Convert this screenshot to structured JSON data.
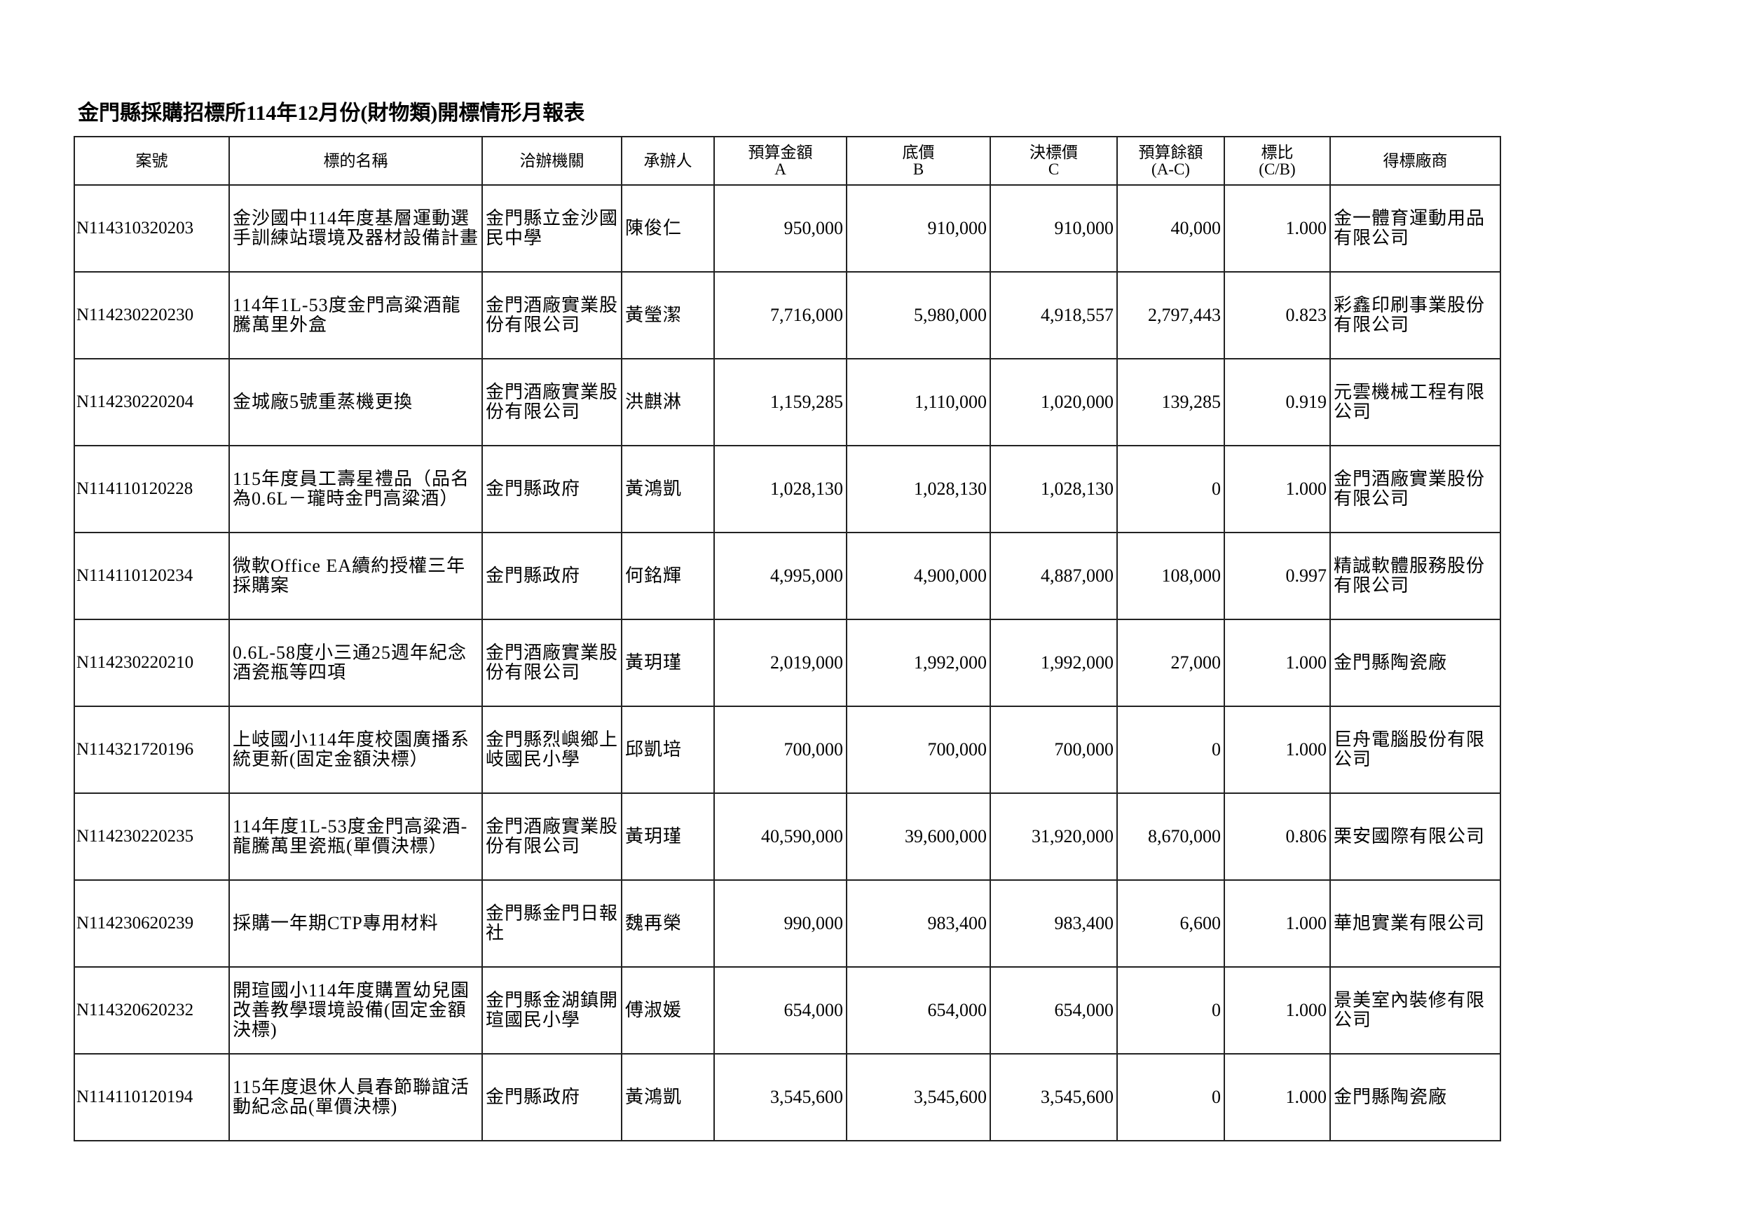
{
  "title": "金門縣採購招標所114年12月份(財物類)開標情形月報表",
  "headers": [
    {
      "main": "案號",
      "sub": ""
    },
    {
      "main": "標的名稱",
      "sub": ""
    },
    {
      "main": "洽辦機關",
      "sub": ""
    },
    {
      "main": "承辦人",
      "sub": ""
    },
    {
      "main": "預算金額",
      "sub": "A"
    },
    {
      "main": "底價",
      "sub": "B"
    },
    {
      "main": "決標價",
      "sub": "C"
    },
    {
      "main": "預算餘額",
      "sub": "(A-C)"
    },
    {
      "main": "標比",
      "sub": "(C/B)"
    },
    {
      "main": "得標廠商",
      "sub": ""
    }
  ],
  "rows": [
    {
      "case_no": "N114310320203",
      "name": "金沙國中114年度基層運動選手訓練站環境及器材設備計畫",
      "agency": "金門縣立金沙國民中學",
      "handler": "陳俊仁",
      "budget": "950,000",
      "base_price": "910,000",
      "award_price": "910,000",
      "remaining": "40,000",
      "ratio": "1.000",
      "vendor": "金一體育運動用品有限公司"
    },
    {
      "case_no": "N114230220230",
      "name": "114年1L-53度金門高粱酒龍騰萬里外盒",
      "agency": "金門酒廠實業股份有限公司",
      "handler": "黃瑩潔",
      "budget": "7,716,000",
      "base_price": "5,980,000",
      "award_price": "4,918,557",
      "remaining": "2,797,443",
      "ratio": "0.823",
      "vendor": "彩鑫印刷事業股份有限公司"
    },
    {
      "case_no": "N114230220204",
      "name": "金城廠5號重蒸機更換",
      "agency": "金門酒廠實業股份有限公司",
      "handler": "洪麒淋",
      "budget": "1,159,285",
      "base_price": "1,110,000",
      "award_price": "1,020,000",
      "remaining": "139,285",
      "ratio": "0.919",
      "vendor": "元雲機械工程有限公司"
    },
    {
      "case_no": "N114110120228",
      "name": "115年度員工壽星禮品（品名為0.6L－瓏時金門高粱酒）",
      "agency": "金門縣政府",
      "handler": "黃鴻凱",
      "budget": "1,028,130",
      "base_price": "1,028,130",
      "award_price": "1,028,130",
      "remaining": "0",
      "ratio": "1.000",
      "vendor": "金門酒廠實業股份有限公司"
    },
    {
      "case_no": "N114110120234",
      "name": "微軟Office EA續約授權三年採購案",
      "agency": "金門縣政府",
      "handler": "何銘輝",
      "budget": "4,995,000",
      "base_price": "4,900,000",
      "award_price": "4,887,000",
      "remaining": "108,000",
      "ratio": "0.997",
      "vendor": "精誠軟體服務股份有限公司"
    },
    {
      "case_no": "N114230220210",
      "name": "0.6L-58度小三通25週年紀念酒瓷瓶等四項",
      "agency": "金門酒廠實業股份有限公司",
      "handler": "黃玥瑾",
      "budget": "2,019,000",
      "base_price": "1,992,000",
      "award_price": "1,992,000",
      "remaining": "27,000",
      "ratio": "1.000",
      "vendor": "金門縣陶瓷廠"
    },
    {
      "case_no": "N114321720196",
      "name": "上岐國小114年度校園廣播系統更新(固定金額決標）",
      "agency": "金門縣烈嶼鄉上岐國民小學",
      "handler": "邱凱培",
      "budget": "700,000",
      "base_price": "700,000",
      "award_price": "700,000",
      "remaining": "0",
      "ratio": "1.000",
      "vendor": "巨舟電腦股份有限公司"
    },
    {
      "case_no": "N114230220235",
      "name": "114年度1L-53度金門高粱酒-龍騰萬里瓷瓶(單價決標）",
      "agency": "金門酒廠實業股份有限公司",
      "handler": "黃玥瑾",
      "budget": "40,590,000",
      "base_price": "39,600,000",
      "award_price": "31,920,000",
      "remaining": "8,670,000",
      "ratio": "0.806",
      "vendor": "栗安國際有限公司"
    },
    {
      "case_no": "N114230620239",
      "name": "採購一年期CTP專用材料",
      "agency": "金門縣金門日報社",
      "handler": "魏再榮",
      "budget": "990,000",
      "base_price": "983,400",
      "award_price": "983,400",
      "remaining": "6,600",
      "ratio": "1.000",
      "vendor": "華旭實業有限公司"
    },
    {
      "case_no": "N114320620232",
      "name": "開瑄國小114年度購置幼兒園改善教學環境設備(固定金額決標)",
      "agency": "金門縣金湖鎮開瑄國民小學",
      "handler": "傅淑媛",
      "budget": "654,000",
      "base_price": "654,000",
      "award_price": "654,000",
      "remaining": "0",
      "ratio": "1.000",
      "vendor": "景美室內裝修有限公司"
    },
    {
      "case_no": "N114110120194",
      "name": "115年度退休人員春節聯誼活動紀念品(單價決標)",
      "agency": "金門縣政府",
      "handler": "黃鴻凱",
      "budget": "3,545,600",
      "base_price": "3,545,600",
      "award_price": "3,545,600",
      "remaining": "0",
      "ratio": "1.000",
      "vendor": "金門縣陶瓷廠"
    }
  ]
}
